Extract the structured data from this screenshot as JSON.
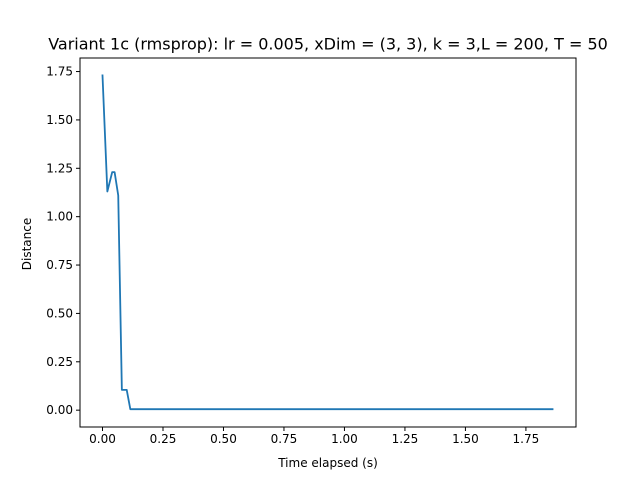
{
  "chart_data": {
    "type": "line",
    "title": "Variant 1c (rmsprop): lr = 0.005, xDim = (3, 3), k = 3,L = 200, T = 50",
    "xlabel": "Time elapsed (s)",
    "ylabel": "Distance",
    "xlim": [
      -0.093,
      1.957
    ],
    "ylim": [
      -0.087,
      1.82
    ],
    "xticks": [
      0.0,
      0.25,
      0.5,
      0.75,
      1.0,
      1.25,
      1.5,
      1.75
    ],
    "xtick_labels": [
      "0.00",
      "0.25",
      "0.50",
      "0.75",
      "1.00",
      "1.25",
      "1.50",
      "1.75"
    ],
    "yticks": [
      0.0,
      0.25,
      0.5,
      0.75,
      1.0,
      1.25,
      1.5,
      1.75
    ],
    "ytick_labels": [
      "0.00",
      "0.25",
      "0.50",
      "0.75",
      "1.00",
      "1.25",
      "1.50",
      "1.75"
    ],
    "grid": false,
    "legend": "none",
    "series": [
      {
        "color": "#1f77b4",
        "x": [
          0.0,
          0.02,
          0.04,
          0.05,
          0.065,
          0.08,
          0.1,
          0.115,
          0.13,
          1.86
        ],
        "y": [
          1.73,
          1.13,
          1.23,
          1.23,
          1.11,
          0.105,
          0.105,
          0.005,
          0.005,
          0.005
        ]
      }
    ]
  }
}
